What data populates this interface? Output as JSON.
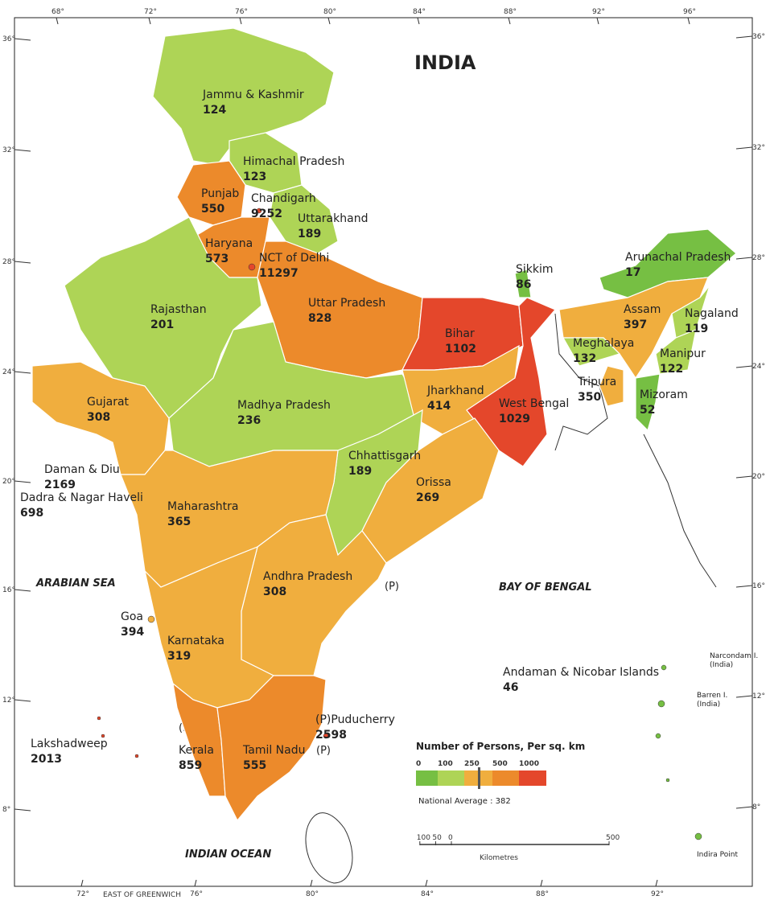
{
  "title": "INDIA",
  "seas": [
    "ARABIAN SEA",
    "BAY OF BENGAL",
    "INDIAN OCEAN"
  ],
  "regions": [
    {
      "name": "Jammu & Kashmir",
      "value": 124
    },
    {
      "name": "Himachal Pradesh",
      "value": 123
    },
    {
      "name": "Punjab",
      "value": 550
    },
    {
      "name": "Chandigarh",
      "value": 9252
    },
    {
      "name": "Uttarakhand",
      "value": 189
    },
    {
      "name": "Haryana",
      "value": 573
    },
    {
      "name": "NCT of Delhi",
      "value": 11297
    },
    {
      "name": "Rajasthan",
      "value": 201
    },
    {
      "name": "Uttar Pradesh",
      "value": 828
    },
    {
      "name": "Bihar",
      "value": 1102
    },
    {
      "name": "Sikkim",
      "value": 86
    },
    {
      "name": "Arunachal Pradesh",
      "value": 17
    },
    {
      "name": "Assam",
      "value": 397
    },
    {
      "name": "Nagaland",
      "value": 119
    },
    {
      "name": "Meghalaya",
      "value": 132
    },
    {
      "name": "Manipur",
      "value": 122
    },
    {
      "name": "Tripura",
      "value": 350
    },
    {
      "name": "Mizoram",
      "value": 52
    },
    {
      "name": "Gujarat",
      "value": 308
    },
    {
      "name": "Madhya Pradesh",
      "value": 236
    },
    {
      "name": "Jharkhand",
      "value": 414
    },
    {
      "name": "West Bengal",
      "value": 1029
    },
    {
      "name": "Chhattisgarh",
      "value": 189
    },
    {
      "name": "Orissa",
      "value": 269
    },
    {
      "name": "Daman & Diu",
      "value": 2169
    },
    {
      "name": "Dadra & Nagar Haveli",
      "value": 698
    },
    {
      "name": "Maharashtra",
      "value": 365
    },
    {
      "name": "Andhra Pradesh",
      "value": 308
    },
    {
      "name": "Goa",
      "value": 394
    },
    {
      "name": "Karnataka",
      "value": 319
    },
    {
      "name": "Andaman & Nicobar Islands",
      "value": 46
    },
    {
      "name": "Lakshadweep",
      "value": 2013
    },
    {
      "name": "Kerala",
      "value": 859
    },
    {
      "name": "(P)Puducherry",
      "value": 2598
    },
    {
      "name": "Tamil Nadu",
      "value": 555
    }
  ],
  "enclave_marks": [
    "(P)",
    "(P)",
    "(P)"
  ],
  "island_labels": [
    {
      "name": "Narcondam I.",
      "note": "(India)"
    },
    {
      "name": "Barren I.",
      "note": "(India)"
    },
    {
      "name": "Indira Point"
    }
  ],
  "legend": {
    "title": "Number of Persons, Per sq. km",
    "breaks": [
      0,
      100,
      250,
      500,
      1000
    ],
    "colors": [
      "#76bf43",
      "#aed456",
      "#f0ae3e",
      "#ec8a2b",
      "#e4472b"
    ],
    "national_average": {
      "label": "National Average :",
      "value": 382
    }
  },
  "scale": {
    "ticks": [
      {
        "value": -100,
        "label": "100"
      },
      {
        "value": -50,
        "label": "50"
      },
      0,
      500
    ],
    "unit": "Kilometres"
  },
  "longitudes": [
    {
      "value": 68,
      "label": "68°"
    },
    {
      "value": 72,
      "label": "72°"
    },
    {
      "value": 76,
      "label": "76°"
    },
    {
      "value": 80,
      "label": "80°"
    },
    {
      "value": 84,
      "label": "84°"
    },
    {
      "value": 88,
      "label": "88°"
    },
    {
      "value": 92,
      "label": "92°"
    },
    {
      "value": 96,
      "label": "96°"
    }
  ],
  "latitudes": [
    {
      "value": 36,
      "label": "36°"
    },
    {
      "value": 32,
      "label": "32°"
    },
    {
      "value": 28,
      "label": "28°"
    },
    {
      "value": 24,
      "label": "24°"
    },
    {
      "value": 20,
      "label": "20°"
    },
    {
      "value": 16,
      "label": "16°"
    },
    {
      "value": 12,
      "label": "12°"
    },
    {
      "value": 8,
      "label": "8°"
    }
  ],
  "meridian_note": "EAST OF GREENWICH"
}
